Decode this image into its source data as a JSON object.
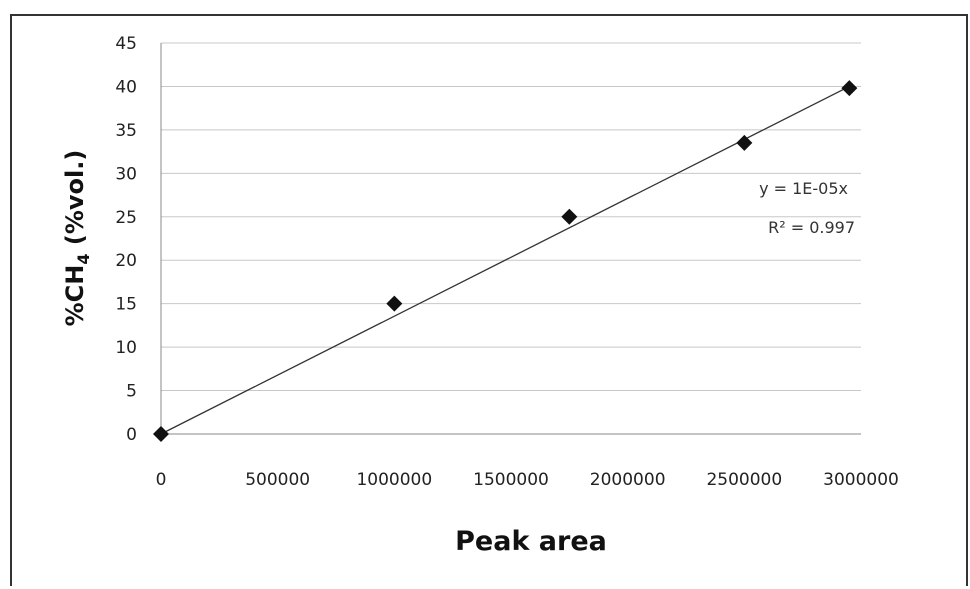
{
  "chart_data": {
    "type": "scatter",
    "xlabel": "Peak area",
    "ylabel_main": "%CH",
    "ylabel_sub": "4",
    "ylabel_rest": " (%vol.)",
    "xlim": [
      0,
      3000000
    ],
    "ylim": [
      0,
      45
    ],
    "x_ticks": [
      0,
      500000,
      1000000,
      1500000,
      2000000,
      2500000,
      3000000
    ],
    "x_tick_labels": [
      "0",
      "500000",
      "1000000",
      "1500000",
      "2000000",
      "2500000",
      "3000000"
    ],
    "y_ticks": [
      0,
      5,
      10,
      15,
      20,
      25,
      30,
      35,
      40,
      45
    ],
    "y_tick_labels": [
      "0",
      "5",
      "10",
      "15",
      "20",
      "25",
      "30",
      "35",
      "40",
      "45"
    ],
    "grid": true,
    "series": [
      {
        "marker": "diamond",
        "x": [
          0,
          1000000,
          1750000,
          2500000,
          2950000
        ],
        "y": [
          0,
          15,
          25,
          33.5,
          39.8
        ]
      }
    ],
    "trendline": {
      "x": [
        0,
        2950000
      ],
      "y": [
        0,
        40
      ],
      "equation": "y = 1E-05x",
      "r2": "R² = 0.997"
    }
  }
}
